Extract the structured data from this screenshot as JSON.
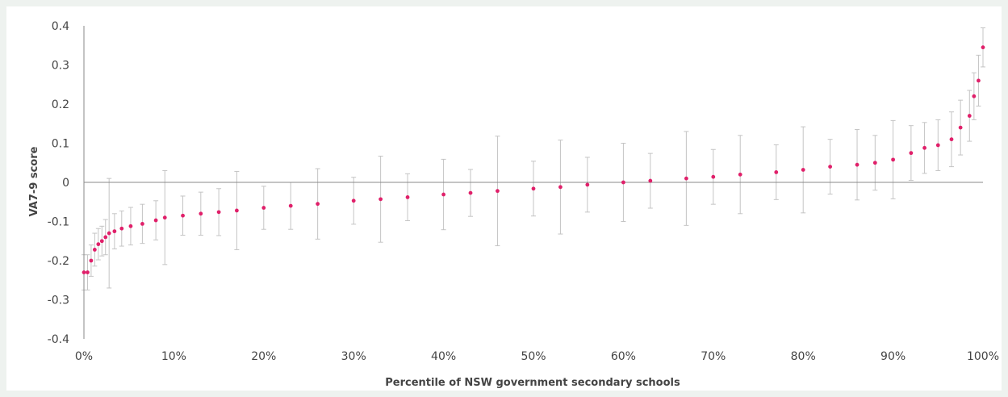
{
  "chart_data": {
    "type": "scatter",
    "title": "",
    "xlabel": "Percentile of NSW government secondary schools",
    "ylabel": "VA7-9 score",
    "xlim": [
      0,
      100
    ],
    "ylim": [
      -0.4,
      0.4
    ],
    "x_ticks": [
      {
        "value": 0,
        "label": "0%"
      },
      {
        "value": 10,
        "label": "10%"
      },
      {
        "value": 20,
        "label": "20%"
      },
      {
        "value": 30,
        "label": "30%"
      },
      {
        "value": 40,
        "label": "40%"
      },
      {
        "value": 50,
        "label": "50%"
      },
      {
        "value": 60,
        "label": "60%"
      },
      {
        "value": 70,
        "label": "70%"
      },
      {
        "value": 80,
        "label": "80%"
      },
      {
        "value": 90,
        "label": "90%"
      },
      {
        "value": 100,
        "label": "100%"
      }
    ],
    "y_ticks": [
      {
        "value": 0.4,
        "label": "0.4"
      },
      {
        "value": 0.3,
        "label": "0.3"
      },
      {
        "value": 0.2,
        "label": "0.2"
      },
      {
        "value": 0.1,
        "label": "0.1"
      },
      {
        "value": 0,
        "label": "0"
      },
      {
        "value": -0.1,
        "label": "-0.1"
      },
      {
        "value": -0.2,
        "label": "-0.2"
      },
      {
        "value": -0.3,
        "label": "-0.3"
      },
      {
        "value": -0.4,
        "label": "-0.4"
      }
    ],
    "grid": false,
    "legend": "none",
    "colors": {
      "point": "#e0206a",
      "error_bar": "#c4c4c4",
      "axis": "#888888",
      "background": "#eef2ef"
    },
    "series": [
      {
        "points": [
          {
            "x": 0.0,
            "y": -0.23,
            "err": 0.045
          },
          {
            "x": 0.4,
            "y": -0.23,
            "err": 0.045
          },
          {
            "x": 0.8,
            "y": -0.2,
            "err": 0.04
          },
          {
            "x": 1.2,
            "y": -0.172,
            "err": 0.042
          },
          {
            "x": 1.6,
            "y": -0.158,
            "err": 0.04
          },
          {
            "x": 2.0,
            "y": -0.15,
            "err": 0.038
          },
          {
            "x": 2.4,
            "y": -0.14,
            "err": 0.045
          },
          {
            "x": 2.8,
            "y": -0.13,
            "err": 0.14
          },
          {
            "x": 3.4,
            "y": -0.125,
            "err": 0.045
          },
          {
            "x": 4.2,
            "y": -0.118,
            "err": 0.045
          },
          {
            "x": 5.2,
            "y": -0.112,
            "err": 0.048
          },
          {
            "x": 6.5,
            "y": -0.106,
            "err": 0.05
          },
          {
            "x": 8.0,
            "y": -0.097,
            "err": 0.05
          },
          {
            "x": 9.0,
            "y": -0.09,
            "err": 0.12
          },
          {
            "x": 11.0,
            "y": -0.085,
            "err": 0.05
          },
          {
            "x": 13.0,
            "y": -0.08,
            "err": 0.055
          },
          {
            "x": 15.0,
            "y": -0.076,
            "err": 0.06
          },
          {
            "x": 17.0,
            "y": -0.072,
            "err": 0.1
          },
          {
            "x": 20.0,
            "y": -0.065,
            "err": 0.055
          },
          {
            "x": 23.0,
            "y": -0.06,
            "err": 0.06
          },
          {
            "x": 26.0,
            "y": -0.055,
            "err": 0.09
          },
          {
            "x": 30.0,
            "y": -0.047,
            "err": 0.06
          },
          {
            "x": 33.0,
            "y": -0.043,
            "err": 0.11
          },
          {
            "x": 36.0,
            "y": -0.038,
            "err": 0.06
          },
          {
            "x": 40.0,
            "y": -0.031,
            "err": 0.09
          },
          {
            "x": 43.0,
            "y": -0.027,
            "err": 0.06
          },
          {
            "x": 46.0,
            "y": -0.022,
            "err": 0.14
          },
          {
            "x": 50.0,
            "y": -0.016,
            "err": 0.07
          },
          {
            "x": 53.0,
            "y": -0.012,
            "err": 0.12
          },
          {
            "x": 56.0,
            "y": -0.006,
            "err": 0.07
          },
          {
            "x": 60.0,
            "y": 0.0,
            "err": 0.1
          },
          {
            "x": 63.0,
            "y": 0.004,
            "err": 0.07
          },
          {
            "x": 67.0,
            "y": 0.01,
            "err": 0.12
          },
          {
            "x": 70.0,
            "y": 0.014,
            "err": 0.07
          },
          {
            "x": 73.0,
            "y": 0.02,
            "err": 0.1
          },
          {
            "x": 77.0,
            "y": 0.026,
            "err": 0.07
          },
          {
            "x": 80.0,
            "y": 0.032,
            "err": 0.11
          },
          {
            "x": 83.0,
            "y": 0.04,
            "err": 0.07
          },
          {
            "x": 86.0,
            "y": 0.045,
            "err": 0.09
          },
          {
            "x": 88.0,
            "y": 0.05,
            "err": 0.07
          },
          {
            "x": 90.0,
            "y": 0.058,
            "err": 0.1
          },
          {
            "x": 92.0,
            "y": 0.075,
            "err": 0.07
          },
          {
            "x": 93.5,
            "y": 0.088,
            "err": 0.065
          },
          {
            "x": 95.0,
            "y": 0.095,
            "err": 0.065
          },
          {
            "x": 96.5,
            "y": 0.11,
            "err": 0.07
          },
          {
            "x": 97.5,
            "y": 0.14,
            "err": 0.07
          },
          {
            "x": 98.5,
            "y": 0.17,
            "err": 0.065
          },
          {
            "x": 99.0,
            "y": 0.22,
            "err": 0.06
          },
          {
            "x": 99.5,
            "y": 0.26,
            "err": 0.065
          },
          {
            "x": 100.0,
            "y": 0.345,
            "err": 0.05
          }
        ]
      }
    ]
  }
}
